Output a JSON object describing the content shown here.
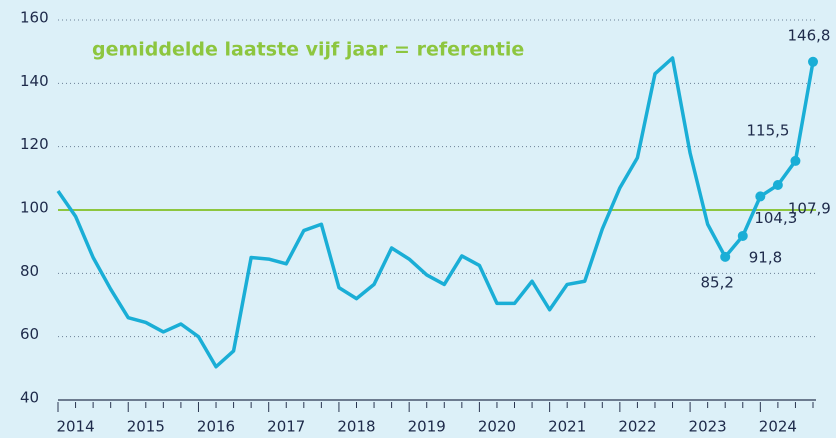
{
  "chart_data": {
    "type": "line",
    "categories": [
      null,
      "2014",
      null,
      null,
      null,
      "2015",
      null,
      null,
      null,
      "2016",
      null,
      null,
      null,
      "2017",
      null,
      null,
      null,
      "2018",
      null,
      null,
      null,
      "2019",
      null,
      null,
      null,
      "2020",
      null,
      null,
      null,
      "2021",
      null,
      null,
      null,
      "2022",
      null,
      null,
      null,
      "2023",
      null,
      null,
      null,
      "2024",
      null,
      null
    ],
    "series": [
      {
        "color": "#1aaed6",
        "values": [
          106,
          98,
          85,
          75,
          66,
          64.5,
          61.5,
          64,
          60,
          50.5,
          55.5,
          85,
          84.5,
          83,
          93.5,
          95.5,
          75.5,
          72,
          76.5,
          88,
          84.5,
          79.5,
          76.5,
          85.5,
          82.5,
          70.5,
          70.5,
          77.5,
          68.5,
          76.5,
          77.5,
          94,
          107,
          116.5,
          143,
          148,
          118,
          95.5,
          85.2,
          91.8,
          104.3,
          107.9,
          115.5,
          146.8
        ],
        "value_labels": [
          null,
          null,
          null,
          null,
          null,
          null,
          null,
          null,
          null,
          null,
          null,
          null,
          null,
          null,
          null,
          null,
          null,
          null,
          null,
          null,
          null,
          null,
          null,
          null,
          null,
          null,
          null,
          null,
          null,
          null,
          null,
          null,
          null,
          null,
          null,
          null,
          null,
          null,
          "85,2",
          "91,8",
          "104,3",
          "107,9",
          "115,5",
          "146,8"
        ]
      }
    ],
    "reference": {
      "value": 100,
      "label": "gemiddelde laatste vijf jaar = referentie",
      "color": "#8dc63f"
    },
    "ylim": [
      40,
      160
    ],
    "yticks": [
      40,
      60,
      80,
      100,
      120,
      140,
      160
    ],
    "grid": true
  }
}
